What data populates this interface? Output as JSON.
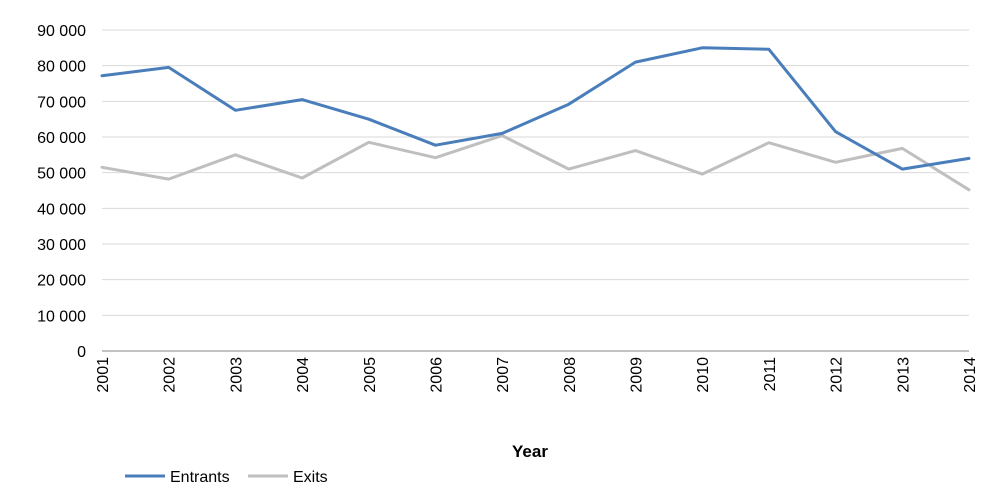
{
  "chart_data": {
    "type": "line",
    "title": "",
    "xlabel": "Year",
    "ylabel": "",
    "categories": [
      "2001",
      "2002",
      "2003",
      "2004",
      "2005",
      "2006",
      "2007",
      "2008",
      "2009",
      "2010",
      "2011",
      "2012",
      "2013",
      "2014"
    ],
    "ylim": [
      0,
      90000
    ],
    "yticks": [
      0,
      10000,
      20000,
      30000,
      40000,
      50000,
      60000,
      70000,
      80000,
      90000
    ],
    "ytick_labels": [
      "0",
      "10 000",
      "20 000",
      "30 000",
      "40 000",
      "50 000",
      "60 000",
      "70 000",
      "80 000",
      "90 000"
    ],
    "grid": "horizontal",
    "legend_position": "bottom-left",
    "series": [
      {
        "name": "Entrants",
        "color": "#4a7ebb",
        "values": [
          77200,
          79500,
          67500,
          70500,
          65000,
          57700,
          61000,
          69200,
          81000,
          85000,
          84600,
          61500,
          51000,
          54000
        ]
      },
      {
        "name": "Exits",
        "color": "#bfbfbf",
        "values": [
          51500,
          48200,
          55000,
          48500,
          58500,
          54200,
          60400,
          51000,
          56200,
          49600,
          58400,
          52900,
          56800,
          45200
        ]
      }
    ]
  }
}
